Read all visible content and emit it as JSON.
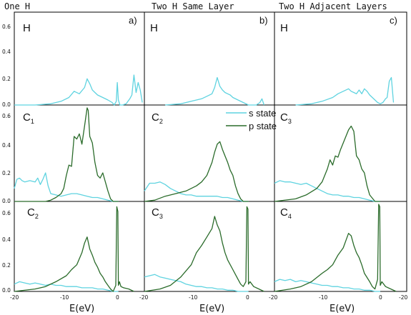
{
  "colors": {
    "s_state": "#5fd3e0",
    "p_state": "#2a6b2a"
  },
  "columns": [
    {
      "title": "One H",
      "label": "a)"
    },
    {
      "title": "Two H Same Layer",
      "label": "b)"
    },
    {
      "title": "Two H Adjacent Layers",
      "label": "c)"
    }
  ],
  "legend": {
    "s": "s state",
    "p": "p state"
  },
  "xlabel": "E(eV)",
  "x_ticks": [
    "-20",
    "-10",
    "0",
    "-20",
    "-10",
    "0",
    "-20",
    "-10",
    "0",
    "-20"
  ],
  "y_ticks_top": [
    "0.6",
    "0.4",
    "0.2",
    "0.0"
  ],
  "y_ticks_mid": [
    "0.6",
    "0.4",
    "0.2",
    "0.0"
  ],
  "y_ticks_bot": [
    "0.6",
    "0.4",
    "0.2",
    "0.0"
  ],
  "chart_data": [
    {
      "type": "line",
      "panel": "a-H",
      "atom": "H",
      "sub": "",
      "series": [
        {
          "key": "s",
          "name": "s state",
          "x": [
            -20,
            -16,
            -13,
            -11,
            -9.5,
            -8.5,
            -7.5,
            -6.5,
            -6,
            -5.5,
            -5,
            -4.5,
            -4,
            -3,
            -2,
            -1.2,
            -0.8,
            -0.4,
            -0.2,
            0,
            0.3,
            0.8,
            1.5,
            2.2,
            2.6,
            3,
            3.4,
            3.8,
            4.2,
            4.6
          ],
          "y": [
            0,
            0,
            0.01,
            0.03,
            0.06,
            0.11,
            0.09,
            0.14,
            0.21,
            0.17,
            0.12,
            0.1,
            0.08,
            0.06,
            0.04,
            0.02,
            0.0,
            0.03,
            0.18,
            0.04,
            0.0,
            0.0,
            0.01,
            0.05,
            0.08,
            0.24,
            0.1,
            0.18,
            0.12,
            0.02
          ]
        }
      ]
    },
    {
      "type": "line",
      "panel": "b-H",
      "atom": "H",
      "sub": "",
      "series": [
        {
          "key": "s",
          "name": "s state",
          "x": [
            -16,
            -13,
            -11,
            -9,
            -8,
            -7,
            -6.5,
            -6,
            -5.5,
            -5,
            -4.5,
            -4,
            -3.5,
            -3,
            -2,
            -1,
            0,
            0.8,
            1.5,
            2.2,
            2.6,
            3
          ],
          "y": [
            0,
            0.01,
            0.03,
            0.05,
            0.07,
            0.09,
            0.14,
            0.22,
            0.15,
            0.12,
            0.1,
            0.09,
            0.08,
            0.06,
            0.04,
            0.02,
            0.0,
            0.0,
            0.0,
            0.02,
            0.05,
            0.0
          ]
        }
      ]
    },
    {
      "type": "line",
      "panel": "c-H",
      "atom": "H",
      "sub": "",
      "series": [
        {
          "key": "s",
          "name": "s state",
          "x": [
            -16,
            -13,
            -11,
            -9,
            -8,
            -7,
            -6,
            -5.5,
            -5,
            -4.5,
            -4,
            -3.5,
            -3,
            -2.5,
            -2,
            -1,
            -0.5,
            0,
            0.5,
            1,
            1.3,
            1.7,
            2.1,
            2.5
          ],
          "y": [
            0,
            0.01,
            0.03,
            0.06,
            0.09,
            0.11,
            0.13,
            0.11,
            0.1,
            0.09,
            0.12,
            0.09,
            0.13,
            0.11,
            0.08,
            0.04,
            0.02,
            0.01,
            0.02,
            0.05,
            0.06,
            0.19,
            0.22,
            0.02
          ]
        }
      ]
    },
    {
      "type": "line",
      "panel": "a-C1",
      "atom": "C",
      "sub": "1",
      "series": [
        {
          "key": "s",
          "name": "s state",
          "x": [
            -20,
            -19.5,
            -19,
            -18.5,
            -18,
            -17,
            -16,
            -15.5,
            -15,
            -14.5,
            -14,
            -13.5,
            -13,
            -12,
            -11,
            -10,
            -9,
            -8,
            -7,
            -6,
            -5,
            -4,
            -3,
            -2,
            -1,
            0
          ],
          "y": [
            0.1,
            0.17,
            0.18,
            0.16,
            0.15,
            0.16,
            0.15,
            0.18,
            0.13,
            0.17,
            0.22,
            0.12,
            0.06,
            0.05,
            0.04,
            0.05,
            0.06,
            0.06,
            0.05,
            0.04,
            0.03,
            0.03,
            0.02,
            0.01,
            0.0,
            0.0
          ]
        },
        {
          "key": "p",
          "name": "p state",
          "x": [
            -20,
            -14,
            -13,
            -12,
            -11,
            -10.5,
            -10,
            -9.5,
            -9,
            -8.5,
            -8,
            -7.5,
            -7,
            -6.5,
            -6,
            -5.8,
            -5.5,
            -5,
            -4.5,
            -4,
            -3.5,
            -3,
            -2.5,
            -2,
            -1.5,
            -1,
            -0.5,
            0
          ],
          "y": [
            0,
            0.0,
            0.01,
            0.03,
            0.06,
            0.1,
            0.2,
            0.28,
            0.27,
            0.5,
            0.48,
            0.52,
            0.44,
            0.58,
            0.72,
            0.7,
            0.5,
            0.45,
            0.3,
            0.2,
            0.18,
            0.22,
            0.15,
            0.08,
            0.02,
            0.0,
            0.0,
            0.0
          ]
        }
      ]
    },
    {
      "type": "line",
      "panel": "b-C2",
      "atom": "C",
      "sub": "2",
      "series": [
        {
          "key": "s",
          "name": "s state",
          "x": [
            -20,
            -19.5,
            -19,
            -18,
            -17,
            -16,
            -15,
            -14,
            -13,
            -12,
            -11,
            -10,
            -9,
            -8,
            -7,
            -6,
            -5,
            -4,
            -3,
            -2,
            -1,
            0
          ],
          "y": [
            0.08,
            0.11,
            0.14,
            0.14,
            0.15,
            0.13,
            0.1,
            0.08,
            0.06,
            0.05,
            0.05,
            0.04,
            0.04,
            0.04,
            0.04,
            0.04,
            0.03,
            0.03,
            0.02,
            0.01,
            0.0,
            0.0
          ]
        },
        {
          "key": "p",
          "name": "p state",
          "x": [
            -20,
            -18,
            -16,
            -14,
            -12,
            -10,
            -9,
            -8,
            -7.5,
            -7,
            -6.5,
            -6,
            -5.5,
            -5,
            -4.5,
            -4,
            -3.5,
            -3,
            -2.5,
            -2,
            -1.5,
            -1,
            0
          ],
          "y": [
            0,
            0.01,
            0.04,
            0.06,
            0.08,
            0.12,
            0.15,
            0.2,
            0.25,
            0.3,
            0.38,
            0.44,
            0.46,
            0.4,
            0.35,
            0.3,
            0.24,
            0.2,
            0.12,
            0.06,
            0.02,
            0.0,
            0.0
          ]
        }
      ]
    },
    {
      "type": "line",
      "panel": "c-C3",
      "atom": "C",
      "sub": "3",
      "series": [
        {
          "key": "s",
          "name": "s state",
          "x": [
            -20,
            -19,
            -18,
            -17,
            -16,
            -15,
            -14,
            -13,
            -12,
            -11,
            -10,
            -9,
            -8,
            -7,
            -6,
            -5,
            -4,
            -3,
            -2,
            -1,
            0
          ],
          "y": [
            0.14,
            0.16,
            0.15,
            0.15,
            0.14,
            0.13,
            0.14,
            0.12,
            0.1,
            0.08,
            0.06,
            0.05,
            0.05,
            0.04,
            0.04,
            0.03,
            0.03,
            0.02,
            0.01,
            0.0,
            0.0
          ]
        },
        {
          "key": "p",
          "name": "p state",
          "x": [
            -20,
            -16,
            -14,
            -12,
            -11,
            -10,
            -9.5,
            -9,
            -8.5,
            -8,
            -7.5,
            -7,
            -6.5,
            -6,
            -5.5,
            -5,
            -4.5,
            -4,
            -3.5,
            -3,
            -2.5,
            -2,
            -1,
            0
          ],
          "y": [
            0,
            0.02,
            0.05,
            0.1,
            0.15,
            0.25,
            0.32,
            0.28,
            0.35,
            0.34,
            0.4,
            0.45,
            0.5,
            0.55,
            0.58,
            0.54,
            0.35,
            0.32,
            0.25,
            0.22,
            0.12,
            0.05,
            0.0,
            0.0
          ]
        }
      ]
    },
    {
      "type": "line",
      "panel": "a-C2",
      "atom": "C",
      "sub": "2",
      "series": [
        {
          "key": "s",
          "name": "s state",
          "x": [
            -20,
            -19,
            -18,
            -17,
            -16,
            -15,
            -14,
            -13,
            -12,
            -11,
            -10,
            -9,
            -8,
            -7,
            -6,
            -5,
            -4,
            -3,
            -2,
            -1,
            0
          ],
          "y": [
            0.06,
            0.08,
            0.07,
            0.06,
            0.07,
            0.06,
            0.05,
            0.06,
            0.05,
            0.05,
            0.04,
            0.04,
            0.04,
            0.03,
            0.03,
            0.03,
            0.02,
            0.02,
            0.01,
            0.0,
            0.0
          ]
        },
        {
          "key": "p",
          "name": "p state",
          "x": [
            -20,
            -16,
            -14,
            -12,
            -10,
            -9,
            -8,
            -7,
            -6.5,
            -6,
            -5.5,
            -5,
            -4.5,
            -4,
            -3.5,
            -3,
            -2.5,
            -2,
            -1.5,
            -1,
            -0.5,
            -0.3,
            -0.1,
            0,
            0.2,
            0.5,
            1,
            2,
            3
          ],
          "y": [
            0,
            0.02,
            0.04,
            0.08,
            0.13,
            0.18,
            0.22,
            0.32,
            0.4,
            0.45,
            0.35,
            0.3,
            0.24,
            0.2,
            0.15,
            0.12,
            0.08,
            0.05,
            0.02,
            0.0,
            0.05,
            0.7,
            0.66,
            0.05,
            0.08,
            0.04,
            0.03,
            0.02,
            0.0
          ]
        }
      ]
    },
    {
      "type": "line",
      "panel": "b-C3",
      "atom": "C",
      "sub": "3",
      "series": [
        {
          "key": "s",
          "name": "s state",
          "x": [
            -20,
            -19,
            -18,
            -17,
            -16,
            -15,
            -14,
            -13,
            -12,
            -11,
            -10,
            -9,
            -8,
            -7,
            -6,
            -5,
            -4,
            -3,
            -2,
            -1,
            0
          ],
          "y": [
            0.12,
            0.13,
            0.14,
            0.12,
            0.11,
            0.1,
            0.09,
            0.08,
            0.06,
            0.05,
            0.04,
            0.04,
            0.03,
            0.03,
            0.02,
            0.02,
            0.01,
            0.01,
            0.0,
            0.0,
            0.0
          ]
        },
        {
          "key": "p",
          "name": "p state",
          "x": [
            -20,
            -17,
            -15,
            -13,
            -11,
            -10,
            -9,
            -8,
            -7,
            -6.5,
            -6,
            -5.5,
            -5,
            -4.5,
            -4,
            -3,
            -2,
            -1.5,
            -1,
            -0.5,
            -0.3,
            -0.1,
            0,
            0.3,
            1,
            2,
            3
          ],
          "y": [
            0,
            0.02,
            0.05,
            0.12,
            0.22,
            0.32,
            0.38,
            0.45,
            0.52,
            0.62,
            0.55,
            0.5,
            0.4,
            0.32,
            0.26,
            0.18,
            0.1,
            0.06,
            0.04,
            0.08,
            0.7,
            0.68,
            0.06,
            0.08,
            0.04,
            0.02,
            0.0
          ]
        }
      ]
    },
    {
      "type": "line",
      "panel": "c-C4",
      "atom": "C",
      "sub": "4",
      "series": [
        {
          "key": "s",
          "name": "s state",
          "x": [
            -20,
            -19,
            -18,
            -17,
            -16,
            -15,
            -14,
            -13,
            -12,
            -11,
            -10,
            -9,
            -8,
            -7,
            -6,
            -5,
            -4,
            -3,
            -2,
            -1,
            0
          ],
          "y": [
            0.08,
            0.1,
            0.09,
            0.1,
            0.08,
            0.09,
            0.08,
            0.07,
            0.06,
            0.05,
            0.05,
            0.04,
            0.04,
            0.03,
            0.03,
            0.02,
            0.02,
            0.01,
            0.01,
            0.0,
            0.0
          ]
        },
        {
          "key": "p",
          "name": "p state",
          "x": [
            -20,
            -17,
            -15,
            -13,
            -11,
            -10,
            -9,
            -8,
            -7,
            -6.5,
            -6,
            -5.5,
            -5,
            -4.5,
            -4,
            -3.5,
            -3,
            -2,
            -1.5,
            -1,
            -0.5,
            -0.3,
            -0.1,
            0,
            0.3,
            1,
            2,
            3
          ],
          "y": [
            0,
            0.02,
            0.04,
            0.08,
            0.15,
            0.18,
            0.22,
            0.3,
            0.36,
            0.42,
            0.48,
            0.46,
            0.38,
            0.32,
            0.28,
            0.22,
            0.15,
            0.08,
            0.04,
            0.02,
            0.1,
            0.72,
            0.7,
            0.05,
            0.08,
            0.04,
            0.02,
            0.0
          ]
        }
      ]
    }
  ]
}
